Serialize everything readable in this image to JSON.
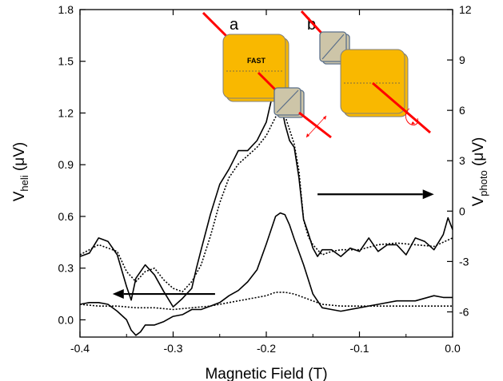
{
  "chart_data": {
    "type": "line",
    "xlabel": "Magnetic Field (T)",
    "ylabel_left": {
      "main": "V",
      "sub": "heli",
      "unit": " (μV)"
    },
    "ylabel_right": {
      "main": "V",
      "sub": "photo",
      "unit": " (μV)"
    },
    "xlim": [
      -0.4,
      0.0
    ],
    "ylim_left": [
      -0.1,
      1.8
    ],
    "ylim_right": [
      -7.5,
      12
    ],
    "x_ticks": [
      "-0.4",
      "-0.3",
      "-0.2",
      "-0.1",
      "0.0"
    ],
    "y_left_ticks": [
      "0.0",
      "0.3",
      "0.6",
      "0.9",
      "1.2",
      "1.5",
      "1.8"
    ],
    "y_right_ticks": [
      "-6",
      "-3",
      "0",
      "3",
      "6",
      "9",
      "12"
    ],
    "grid": false,
    "series": [
      {
        "axis": "right",
        "style": "solid",
        "x": [
          -0.4,
          -0.39,
          -0.38,
          -0.37,
          -0.36,
          -0.35,
          -0.345,
          -0.34,
          -0.33,
          -0.32,
          -0.31,
          -0.3,
          -0.29,
          -0.28,
          -0.275,
          -0.27,
          -0.26,
          -0.25,
          -0.24,
          -0.23,
          -0.22,
          -0.21,
          -0.2,
          -0.195,
          -0.19,
          -0.185,
          -0.18,
          -0.175,
          -0.17,
          -0.165,
          -0.16,
          -0.155,
          -0.15,
          -0.145,
          -0.14,
          -0.13,
          -0.12,
          -0.11,
          -0.1,
          -0.09,
          -0.08,
          -0.07,
          -0.06,
          -0.05,
          -0.04,
          -0.03,
          -0.02,
          -0.01,
          -0.005,
          0.0
        ],
        "y": [
          -2.7,
          -2.5,
          -1.6,
          -1.8,
          -2.6,
          -4.5,
          -5.3,
          -4.0,
          -3.2,
          -3.8,
          -4.8,
          -5.7,
          -5.2,
          -4.6,
          -3.4,
          -2.3,
          -0.2,
          1.6,
          2.5,
          3.6,
          3.6,
          4.2,
          5.3,
          6.5,
          7.3,
          6.6,
          5.2,
          4.2,
          3.8,
          2.0,
          -0.5,
          -1.3,
          -2.2,
          -2.7,
          -2.3,
          -2.3,
          -2.7,
          -2.2,
          -2.4,
          -1.6,
          -2.4,
          -2.0,
          -2.0,
          -2.6,
          -1.6,
          -1.8,
          -2.3,
          -1.4,
          -0.4,
          -1.1
        ]
      },
      {
        "axis": "right",
        "style": "dotted",
        "x": [
          -0.4,
          -0.39,
          -0.38,
          -0.37,
          -0.36,
          -0.35,
          -0.34,
          -0.33,
          -0.32,
          -0.31,
          -0.3,
          -0.29,
          -0.28,
          -0.27,
          -0.26,
          -0.25,
          -0.24,
          -0.23,
          -0.22,
          -0.21,
          -0.2,
          -0.19,
          -0.185,
          -0.18,
          -0.17,
          -0.165,
          -0.16,
          -0.155,
          -0.15,
          -0.14,
          -0.13,
          -0.12,
          -0.1,
          -0.08,
          -0.06,
          -0.04,
          -0.02,
          0.0
        ],
        "y": [
          -2.6,
          -2.3,
          -2.0,
          -2.2,
          -2.4,
          -3.6,
          -4.2,
          -3.6,
          -3.4,
          -4.1,
          -4.6,
          -4.8,
          -4.2,
          -3.2,
          -1.5,
          0.5,
          2.0,
          2.8,
          3.3,
          3.8,
          4.5,
          5.6,
          6.2,
          5.7,
          4.0,
          2.4,
          -0.5,
          -1.5,
          -2.0,
          -2.6,
          -2.4,
          -2.3,
          -2.3,
          -2.0,
          -1.9,
          -2.0,
          -2.1,
          -1.6
        ]
      },
      {
        "axis": "left",
        "style": "solid",
        "x": [
          -0.4,
          -0.39,
          -0.38,
          -0.37,
          -0.36,
          -0.35,
          -0.345,
          -0.34,
          -0.335,
          -0.33,
          -0.32,
          -0.31,
          -0.3,
          -0.29,
          -0.28,
          -0.27,
          -0.26,
          -0.25,
          -0.24,
          -0.23,
          -0.22,
          -0.21,
          -0.2,
          -0.19,
          -0.185,
          -0.18,
          -0.175,
          -0.17,
          -0.16,
          -0.15,
          -0.14,
          -0.13,
          -0.12,
          -0.1,
          -0.08,
          -0.06,
          -0.04,
          -0.02,
          -0.01,
          0.0
        ],
        "y": [
          0.09,
          0.1,
          0.1,
          0.09,
          0.05,
          0.0,
          -0.06,
          -0.09,
          -0.07,
          -0.03,
          -0.03,
          -0.01,
          0.02,
          0.03,
          0.06,
          0.06,
          0.08,
          0.1,
          0.14,
          0.17,
          0.22,
          0.29,
          0.44,
          0.6,
          0.62,
          0.61,
          0.55,
          0.47,
          0.32,
          0.15,
          0.07,
          0.06,
          0.05,
          0.07,
          0.09,
          0.11,
          0.11,
          0.14,
          0.13,
          0.13
        ]
      },
      {
        "axis": "left",
        "style": "dotted",
        "x": [
          -0.4,
          -0.38,
          -0.36,
          -0.34,
          -0.32,
          -0.3,
          -0.28,
          -0.26,
          -0.24,
          -0.22,
          -0.2,
          -0.19,
          -0.18,
          -0.17,
          -0.16,
          -0.14,
          -0.12,
          -0.1,
          -0.08,
          -0.06,
          -0.04,
          -0.02,
          0.0
        ],
        "y": [
          0.09,
          0.08,
          0.08,
          0.07,
          0.07,
          0.06,
          0.07,
          0.08,
          0.1,
          0.12,
          0.14,
          0.16,
          0.16,
          0.15,
          0.13,
          0.09,
          0.08,
          0.08,
          0.08,
          0.08,
          0.08,
          0.08,
          0.08
        ]
      }
    ],
    "annotations": {
      "arrow_left": {
        "direction": "left",
        "x_from": -0.255,
        "x_to": -0.365,
        "axis": "left",
        "y": 0.15
      },
      "arrow_right": {
        "direction": "right",
        "x_from": -0.145,
        "x_to": -0.02,
        "axis": "right",
        "y": 1.0
      }
    }
  },
  "inset": {
    "label_a": "a",
    "label_b": "b",
    "fast_label": "FAST",
    "plate_color": "#f9b800",
    "polarizer_color": "#cdc5a8",
    "beam_color": "#ff0000"
  }
}
